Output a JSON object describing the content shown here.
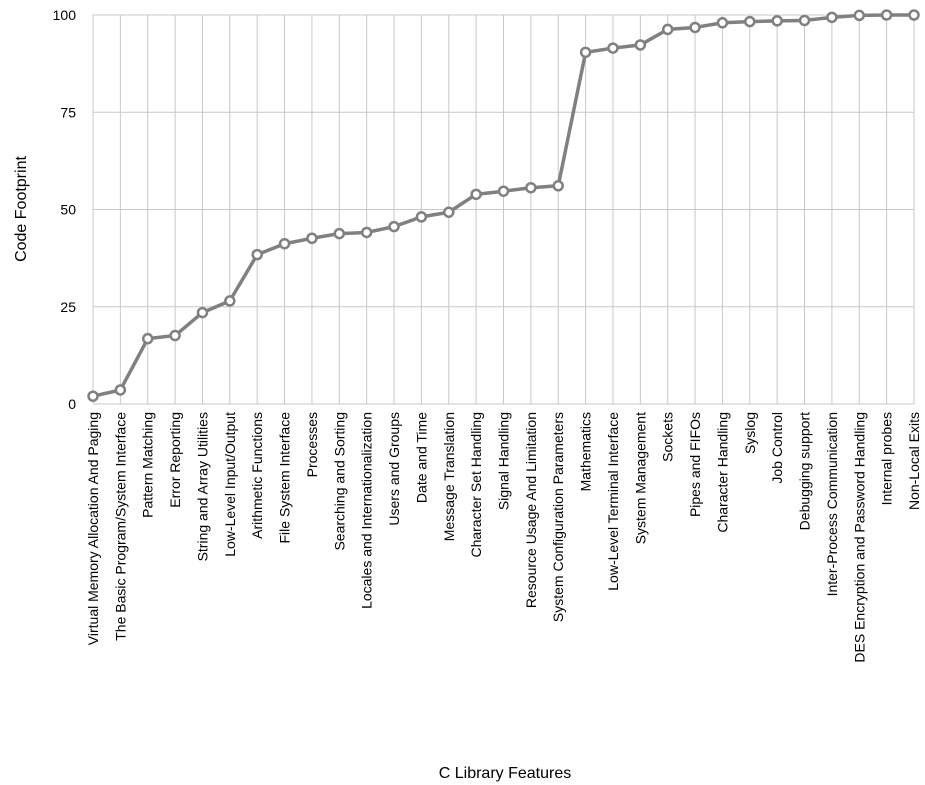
{
  "chart_data": {
    "type": "line",
    "title": "",
    "xlabel": "C Library Features",
    "ylabel": "Code Footprint",
    "ylim": [
      0,
      100
    ],
    "yticks": [
      0,
      25,
      50,
      75,
      100
    ],
    "grid": true,
    "categories": [
      "Virtual Memory Allocation And Paging",
      "The Basic Program/System Interface",
      "Pattern Matching",
      "Error Reporting",
      "String and Array Utilities",
      "Low-Level Input/Output",
      "Arithmetic Functions",
      "File System Interface",
      "Processes",
      "Searching and Sorting",
      "Locales and Internationalization",
      "Users and Groups",
      "Date and Time",
      "Message Translation",
      "Character Set Handling",
      "Signal Handling",
      "Resource Usage And Limitation",
      "System Configuration Parameters",
      "Mathematics",
      "Low-Level Terminal Interface",
      "System Management",
      "Sockets",
      "Pipes and FIFOs",
      "Character Handling",
      "Syslog",
      "Job Control",
      "Debugging support",
      "Inter-Process Communication",
      "DES Encryption and Password Handling",
      "Internal probes",
      "Non-Local Exits"
    ],
    "series": [
      {
        "values": [
          2,
          3.6,
          16.8,
          17.6,
          23.5,
          26.5,
          38.4,
          41.2,
          42.6,
          43.8,
          44.1,
          45.6,
          48.1,
          49.3,
          53.9,
          54.7,
          55.6,
          56.1,
          90.4,
          91.5,
          92.3,
          96.3,
          96.8,
          98,
          98.3,
          98.5,
          98.6,
          99.4,
          99.9,
          100,
          100
        ],
        "color": "#808080",
        "marker_fill": "#ffffff"
      }
    ]
  }
}
